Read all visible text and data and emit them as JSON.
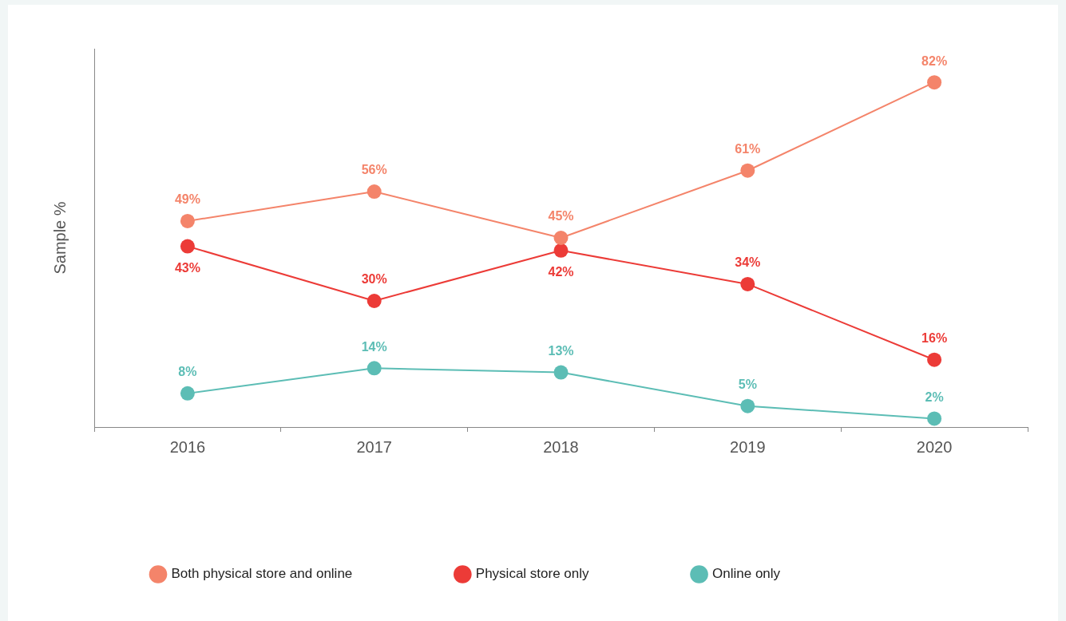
{
  "chart_data": {
    "type": "line",
    "ylabel": "Sample %",
    "categories": [
      "2016",
      "2017",
      "2018",
      "2019",
      "2020"
    ],
    "series": [
      {
        "name": "Both physical store and online",
        "color": "#f4846a",
        "values": [
          49,
          56,
          45,
          61,
          82
        ],
        "value_labels": [
          "49%",
          "56%",
          "45%",
          "61%",
          "82%"
        ]
      },
      {
        "name": "Physical store only",
        "color": "#ec3b37",
        "values": [
          43,
          30,
          42,
          34,
          16
        ],
        "value_labels": [
          "43%",
          "30%",
          "42%",
          "34%",
          "16%"
        ]
      },
      {
        "name": "Online only",
        "color": "#5cbdb5",
        "values": [
          8,
          14,
          13,
          5,
          2
        ],
        "value_labels": [
          "8%",
          "14%",
          "13%",
          "5%",
          "2%"
        ]
      }
    ],
    "marker": "circle",
    "line_style": "solid",
    "legend": "bottom"
  }
}
